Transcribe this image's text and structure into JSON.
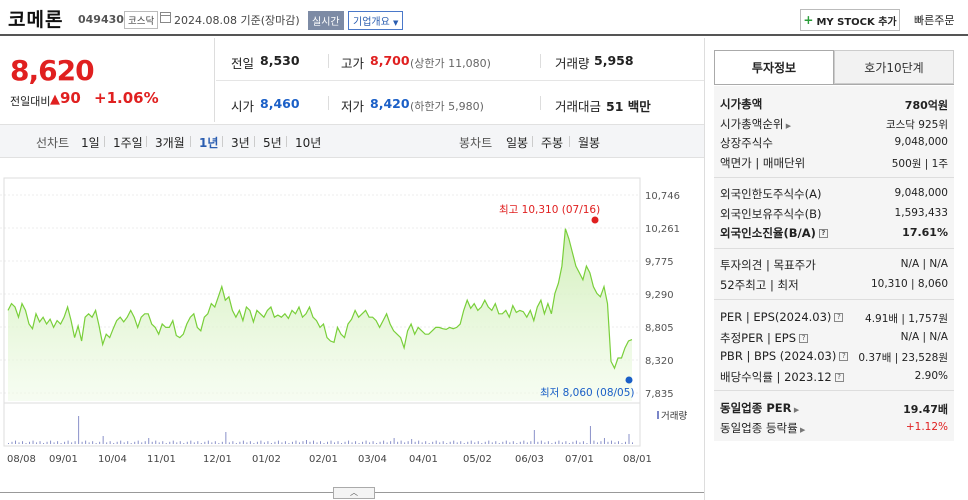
{
  "header": {
    "stock_name": "코메론",
    "stock_code": "049430",
    "market": "코스닥",
    "date_text": "2024.08.08 기준(장마감)",
    "realtime": "실시간",
    "company_overview": "기업개요",
    "my_stock": "MY STOCK 추가",
    "quick_order": "빠른주문"
  },
  "price": {
    "current": "8,620",
    "change_label": "전일대비",
    "change": "90",
    "change_pct": "+1.06%",
    "prev_close_label": "전일",
    "prev_close": "8,530",
    "high_label": "고가",
    "high": "8,700",
    "upper_limit": "(상한가 11,080)",
    "volume_label": "거래량",
    "volume": "5,958",
    "open_label": "시가",
    "open": "8,460",
    "low_label": "저가",
    "low": "8,420",
    "lower_limit": "(하한가 5,980)",
    "amount_label": "거래대금",
    "amount": "51",
    "amount_unit": "백만"
  },
  "period_bar": {
    "line_chart_label": "선차트",
    "line_periods": [
      "1일",
      "1주일",
      "3개월",
      "1년",
      "3년",
      "5년",
      "10년"
    ],
    "selected": "1년",
    "candle_chart_label": "봉차트",
    "candle_periods": [
      "일봉",
      "주봉",
      "월봉"
    ]
  },
  "chart_data": {
    "type": "area",
    "x_ticks": [
      "08/08",
      "09/01",
      "10/04",
      "11/01",
      "12/01",
      "01/02",
      "02/01",
      "03/04",
      "04/01",
      "05/02",
      "06/03",
      "07/01",
      "08/01"
    ],
    "y_ticks": [
      "10,746",
      "10,261",
      "9,775",
      "9,290",
      "8,805",
      "8,320",
      "7,835"
    ],
    "ylim": [
      7835,
      10746
    ],
    "high_annotation": "최고 10,310 (07/16)",
    "low_annotation": "최저 8,060 (08/05)",
    "volume_label": "거래량",
    "values": [
      9050,
      9150,
      9100,
      8950,
      9150,
      9050,
      8850,
      8780,
      9000,
      8880,
      8950,
      8850,
      8920,
      8800,
      8900,
      8850,
      8950,
      9100,
      8900,
      8650,
      8820,
      8600,
      8950,
      9000,
      8950,
      9050,
      8820,
      8550,
      8700,
      8650,
      8780,
      8900,
      8950,
      8880,
      8950,
      9050,
      8950,
      8800,
      8950,
      9000,
      9000,
      8850,
      8800,
      8700,
      8850,
      8800,
      8800,
      8900,
      8680,
      8650,
      8700,
      8850,
      8950,
      9000,
      8800,
      8750,
      8950,
      9000,
      9150,
      9100,
      9250,
      9400,
      9200,
      9250,
      9050,
      8950,
      9050,
      8900,
      9100,
      9050,
      8880,
      9050,
      9000,
      8950,
      9050,
      9100,
      8950,
      8980,
      8950,
      9000,
      8930,
      9050,
      9000,
      9100,
      8950,
      9000,
      9100,
      8950,
      8900,
      8800,
      8850,
      8650,
      8600,
      8580,
      8800,
      8700,
      8650,
      8850,
      8920,
      9050,
      8950,
      9000,
      9050,
      8950,
      8950,
      8900,
      8800,
      8900,
      9000,
      8850,
      8750,
      8700,
      8650,
      8500,
      8750,
      8850,
      8700,
      8800,
      8750,
      8700,
      8700,
      8750,
      8800,
      8800,
      8780,
      8770,
      8800,
      8780,
      8800,
      8850,
      9050,
      9200,
      9080,
      9150,
      9050,
      9100,
      9200,
      9100,
      9050,
      9150,
      9000,
      9000,
      9050,
      8950,
      9120,
      9020,
      9050,
      9030,
      8950,
      9050,
      8900,
      9100,
      9200,
      9000,
      9150,
      9000,
      9300,
      9450,
      9700,
      10250,
      10100,
      9900,
      9700,
      9600,
      9500,
      9700,
      9600,
      9400,
      9300,
      9250,
      9400,
      9150,
      8300,
      8200,
      8350,
      8350,
      8500,
      8600,
      8620
    ]
  },
  "right_panel": {
    "tab_invest": "투자정보",
    "tab_orderbook": "호가10단계",
    "rows_group1": [
      {
        "label": "시가총액",
        "value": "780억원",
        "bold": true
      },
      {
        "label": "시가총액순위",
        "value": "코스닥 925위",
        "arrow": true
      },
      {
        "label": "상장주식수",
        "value": "9,048,000"
      },
      {
        "label": "액면가 | 매매단위",
        "value": "500원 | 1주"
      }
    ],
    "rows_group2": [
      {
        "label": "외국인한도주식수(A)",
        "value": "9,048,000"
      },
      {
        "label": "외국인보유주식수(B)",
        "value": "1,593,433"
      },
      {
        "label": "외국인소진율(B/A)",
        "value": "17.61%",
        "bold": true,
        "q": true
      }
    ],
    "rows_group3": [
      {
        "label": "투자의견 | 목표주가",
        "value": "N/A | N/A"
      },
      {
        "label": "52주최고 | 최저",
        "value": "10,310 | 8,060"
      }
    ],
    "rows_group4": [
      {
        "label": "PER | EPS(2024.03)",
        "value": "4.91배 | 1,757원",
        "q": true
      },
      {
        "label": "추정PER | EPS",
        "value": "N/A | N/A",
        "q": true
      },
      {
        "label": "PBR | BPS (2024.03)",
        "value": "0.37배 | 23,528원",
        "q": true
      },
      {
        "label": "배당수익률 | 2023.12",
        "value": "2.90%",
        "q": true
      }
    ],
    "rows_group5": [
      {
        "label": "동일업종 PER",
        "value": "19.47배",
        "bold": true,
        "arrow": true
      },
      {
        "label": "동일업종 등락률",
        "value": "+1.12%",
        "red": true,
        "arrow": true
      }
    ]
  }
}
